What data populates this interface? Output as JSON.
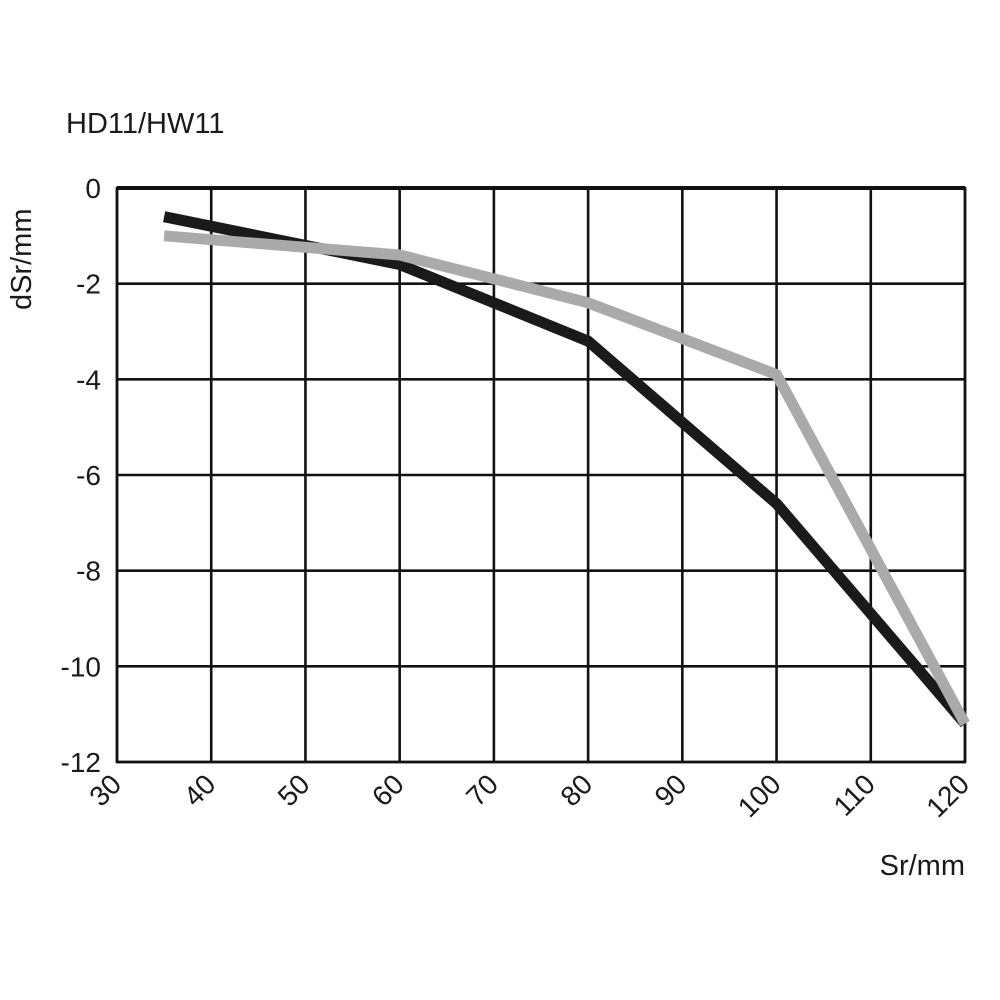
{
  "chart_data": {
    "type": "line",
    "title": "HD11/HW11",
    "xlabel": "Sr/mm",
    "ylabel": "dSr/mm",
    "xlim": [
      30,
      120
    ],
    "ylim": [
      -12,
      0
    ],
    "x_ticks": [
      30,
      40,
      50,
      60,
      70,
      80,
      90,
      100,
      110,
      120
    ],
    "y_ticks": [
      0,
      -2,
      -4,
      -6,
      -8,
      -10,
      -12
    ],
    "grid": true,
    "legend": "none",
    "series": [
      {
        "color": "#1a1a1a",
        "x": [
          35,
          60,
          80,
          100,
          120
        ],
        "y": [
          -0.6,
          -1.6,
          -3.2,
          -6.6,
          -11.2
        ]
      },
      {
        "color": "#aaaaaa",
        "x": [
          35,
          60,
          80,
          100,
          120
        ],
        "y": [
          -1.0,
          -1.4,
          -2.4,
          -3.9,
          -11.2
        ]
      }
    ]
  }
}
